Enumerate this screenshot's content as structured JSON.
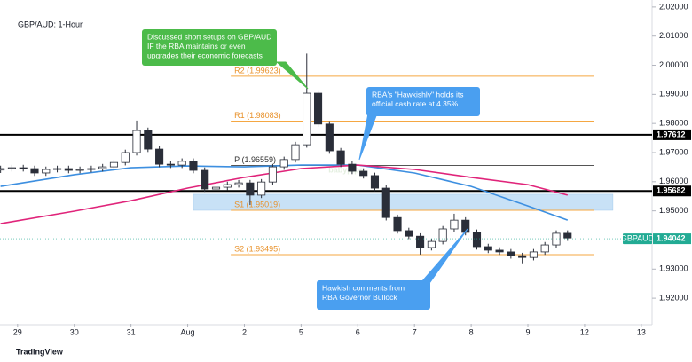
{
  "chart_data": {
    "type": "candlestick",
    "title": "GBP/AUD: 1-Hour",
    "watermark": "babypips",
    "footer": "TradingView",
    "xlim": [
      -0.31,
      11.19
    ],
    "ylim": [
      1.9112,
      2.0224
    ],
    "xticks": [
      {
        "value": 0,
        "label": "29"
      },
      {
        "value": 1,
        "label": "30"
      },
      {
        "value": 2,
        "label": "31"
      },
      {
        "value": 3,
        "label": "Aug"
      },
      {
        "value": 4,
        "label": "2"
      },
      {
        "value": 5,
        "label": "5"
      },
      {
        "value": 6,
        "label": "6"
      },
      {
        "value": 7,
        "label": "7"
      },
      {
        "value": 8,
        "label": "8"
      },
      {
        "value": 9,
        "label": "9"
      },
      {
        "value": 10,
        "label": "12"
      },
      {
        "value": 11,
        "label": "13"
      }
    ],
    "yticks": [
      {
        "value": 1.92,
        "label": "1.92000"
      },
      {
        "value": 1.93,
        "label": "1.93000"
      },
      {
        "value": 1.94,
        "label": "1.94000"
      },
      {
        "value": 1.95,
        "label": "1.95000"
      },
      {
        "value": 1.96,
        "label": "1.96000"
      },
      {
        "value": 1.97,
        "label": "1.97000"
      },
      {
        "value": 1.98,
        "label": "1.98000"
      },
      {
        "value": 1.99,
        "label": "1.99000"
      },
      {
        "value": 2.0,
        "label": "2.00000"
      },
      {
        "value": 2.01,
        "label": "2.01000"
      },
      {
        "value": 2.02,
        "label": "2.02000"
      }
    ],
    "up_color": "#ffffff",
    "down_color": "#2a2e39",
    "wick_color": "#2a2e39",
    "x": [
      -0.3,
      -0.1,
      0.1,
      0.3,
      0.5,
      0.7,
      0.9,
      1.1,
      1.3,
      1.5,
      1.7,
      1.9,
      2.1,
      2.3,
      2.5,
      2.7,
      2.9,
      3.1,
      3.3,
      3.5,
      3.7,
      3.9,
      4.1,
      4.3,
      4.5,
      4.7,
      4.9,
      5.1,
      5.3,
      5.5,
      5.7,
      5.9,
      6.1,
      6.3,
      6.5,
      6.7,
      6.9,
      7.1,
      7.3,
      7.5,
      7.7,
      7.9,
      8.1,
      8.3,
      8.5,
      8.7,
      8.9,
      9.1,
      9.3,
      9.5,
      9.7
    ],
    "open": [
      1.964,
      1.9645,
      1.9648,
      1.9645,
      1.963,
      1.9642,
      1.9645,
      1.9639,
      1.9642,
      1.9645,
      1.9651,
      1.9666,
      1.97,
      1.9776,
      1.9712,
      1.966,
      1.9657,
      1.967,
      1.9639,
      1.9575,
      1.9581,
      1.959,
      1.9596,
      1.9554,
      1.9599,
      1.9651,
      1.9676,
      1.9727,
      1.9904,
      1.9798,
      1.9706,
      1.966,
      1.9636,
      1.9621,
      1.9578,
      1.9477,
      1.9432,
      1.9413,
      1.9374,
      1.9395,
      1.9438,
      1.9468,
      1.9426,
      1.9377,
      1.9365,
      1.9359,
      1.9346,
      1.934,
      1.9359,
      1.9383,
      1.9423
    ],
    "high": [
      1.9655,
      1.9658,
      1.9658,
      1.9655,
      1.9652,
      1.9655,
      1.9655,
      1.9652,
      1.9655,
      1.9661,
      1.9676,
      1.971,
      1.981,
      1.9786,
      1.9722,
      1.967,
      1.968,
      1.968,
      1.9649,
      1.9591,
      1.96,
      1.9606,
      1.9606,
      1.9609,
      1.9661,
      1.9686,
      1.9737,
      2.004,
      1.9914,
      1.9808,
      1.9716,
      1.967,
      1.9646,
      1.9631,
      1.9588,
      1.9487,
      1.9442,
      1.9423,
      1.9405,
      1.9448,
      1.949,
      1.9478,
      1.9436,
      1.9387,
      1.9375,
      1.9369,
      1.9356,
      1.9369,
      1.9393,
      1.9433,
      1.9433
    ],
    "low": [
      1.963,
      1.9635,
      1.9635,
      1.962,
      1.962,
      1.9632,
      1.9629,
      1.9629,
      1.9632,
      1.9635,
      1.9641,
      1.9656,
      1.969,
      1.9702,
      1.965,
      1.9647,
      1.9647,
      1.9629,
      1.9565,
      1.956,
      1.9571,
      1.958,
      1.952,
      1.9544,
      1.9589,
      1.9641,
      1.9666,
      1.9717,
      1.9788,
      1.9696,
      1.965,
      1.9626,
      1.9611,
      1.9568,
      1.9467,
      1.9422,
      1.9403,
      1.935,
      1.9364,
      1.9385,
      1.9428,
      1.9416,
      1.9367,
      1.9355,
      1.9349,
      1.9336,
      1.932,
      1.933,
      1.9349,
      1.9373,
      1.9397
    ],
    "close": [
      1.9645,
      1.9648,
      1.9645,
      1.963,
      1.9642,
      1.9645,
      1.9639,
      1.9642,
      1.9645,
      1.9651,
      1.9666,
      1.97,
      1.9776,
      1.9712,
      1.966,
      1.9657,
      1.967,
      1.9639,
      1.9575,
      1.9581,
      1.959,
      1.9596,
      1.9554,
      1.9599,
      1.9651,
      1.9676,
      1.9727,
      1.9904,
      1.9798,
      1.9706,
      1.966,
      1.9636,
      1.9621,
      1.9578,
      1.9477,
      1.9432,
      1.9413,
      1.9374,
      1.9395,
      1.9438,
      1.9468,
      1.9426,
      1.9377,
      1.9365,
      1.9359,
      1.9346,
      1.934,
      1.9359,
      1.9383,
      1.9423,
      1.9407
    ],
    "moving_averages": [
      {
        "color": "#3d8fe0",
        "x": [
          -0.3,
          1,
          2,
          3,
          4,
          5,
          6,
          7,
          8,
          9,
          9.7
        ],
        "values": [
          1.9584,
          1.9624,
          1.9648,
          1.9654,
          1.9651,
          1.9657,
          1.9657,
          1.963,
          1.9584,
          1.9517,
          1.9468
        ]
      },
      {
        "color": "#e0247a",
        "x": [
          -0.3,
          1,
          2,
          3,
          4,
          5,
          6,
          7,
          8,
          9,
          9.7
        ],
        "values": [
          1.9456,
          1.9499,
          1.9535,
          1.9578,
          1.9615,
          1.9645,
          1.9657,
          1.9642,
          1.9615,
          1.959,
          1.9554
        ]
      }
    ],
    "horizontal_lines": [
      {
        "value": 1.97612,
        "color": "#000000"
      },
      {
        "value": 1.95682,
        "color": "#000000"
      }
    ],
    "zone": {
      "xlim": [
        3.1,
        10.5
      ],
      "ylim": [
        1.9502,
        1.9557
      ],
      "color": "#bfdcf5"
    },
    "pivot_color": "#f5a742",
    "pivot_xlim": [
      3.76,
      10.17
    ],
    "pivots": [
      {
        "label": "R2 (1.99623)",
        "value": 1.99623
      },
      {
        "label": "R1 (1.98083)",
        "value": 1.98083
      },
      {
        "label": "P (1.96559)",
        "value": 1.96559
      },
      {
        "label": "S1 (1.95019)",
        "value": 1.95019
      },
      {
        "label": "S2 (1.93495)",
        "value": 1.93495
      }
    ],
    "last_price": {
      "symbol": "GBPAUD",
      "value": 1.94042,
      "color": "#22ab94"
    },
    "annotations": [
      {
        "color": "#4cbb4a",
        "lines": [
          "Discussed short setups on GBP/AUD",
          "IF the RBA  maintains or even",
          "upgrades their economic forecasts"
        ]
      },
      {
        "color": "#4a9ff0",
        "lines": [
          "RBA's \"Hawkishly\" holds its",
          "official cash rate at 4.35%"
        ]
      },
      {
        "color": "#4a9ff0",
        "lines": [
          "Hawkish comments from",
          "RBA Governor Bullock"
        ]
      }
    ]
  }
}
